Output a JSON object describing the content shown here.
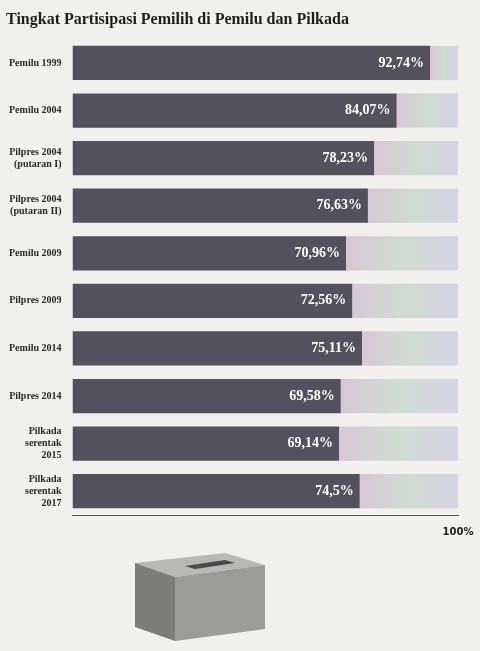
{
  "chart_data": {
    "type": "bar",
    "orientation": "horizontal",
    "title": "Tingkat Partisipasi Pemilih di Pemilu dan Pilkada",
    "categories": [
      "Pemilu 1999",
      "Pemilu 2004",
      "Pilpres 2004 (putaran I)",
      "Pilpres 2004 (putaran II)",
      "Pemilu 2009",
      "Pilpres 2009",
      "Pemilu 2014",
      "Pilpres 2014",
      "Pilkada serentak 2015",
      "Pilkada serentak 2017"
    ],
    "values": [
      92.74,
      84.07,
      78.23,
      76.63,
      70.96,
      72.56,
      75.11,
      69.58,
      69.14,
      74.5
    ],
    "value_labels": [
      "92,74%",
      "84,07%",
      "78,23%",
      "76,63%",
      "70,96%",
      "72,56%",
      "75,11%",
      "69,58%",
      "69,14%",
      "74,5%"
    ],
    "color": "#55505e",
    "xlim": [
      0,
      100
    ],
    "xticks": [
      {
        "value": 100,
        "label": "100%"
      }
    ],
    "grid": false,
    "data_labels": true
  }
}
